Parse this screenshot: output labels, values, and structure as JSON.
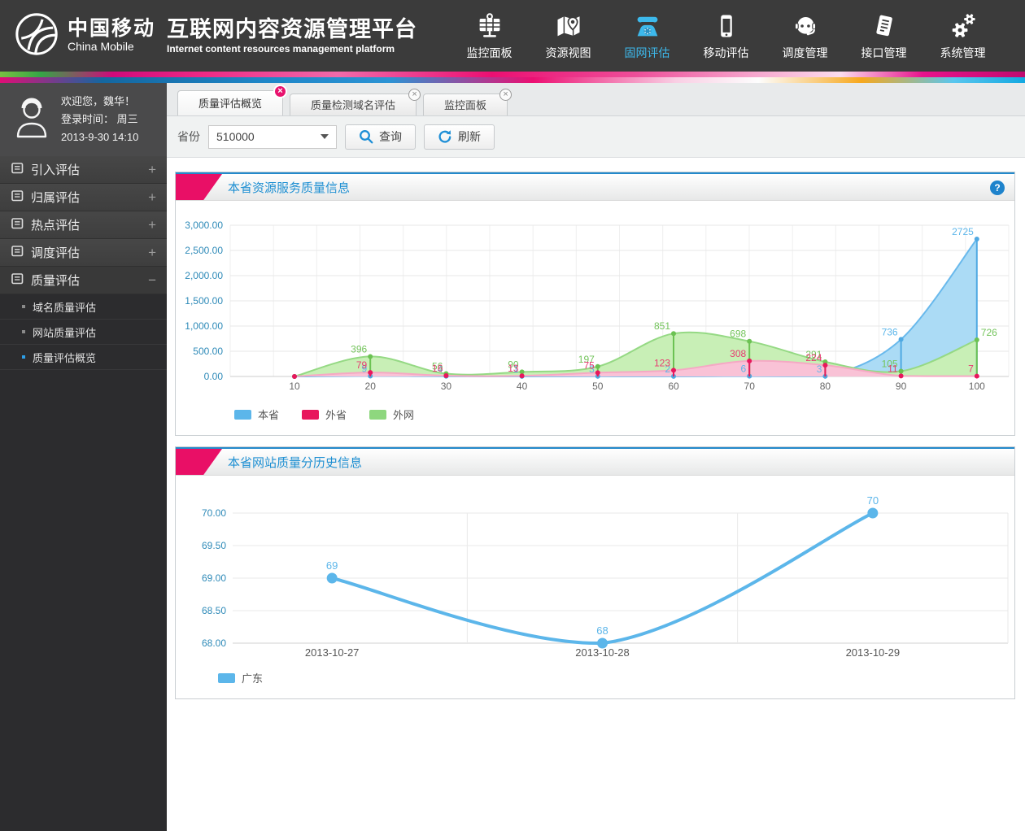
{
  "header": {
    "brand": {
      "name_cn": "中国移动",
      "name_en": "China Mobile",
      "platform_cn": "互联网内容资源管理平台",
      "platform_en": "Internet content resources management platform"
    },
    "nav": [
      {
        "label": "监控面板",
        "icon": "monitor-panel-icon",
        "active": false
      },
      {
        "label": "资源视图",
        "icon": "resource-view-icon",
        "active": false
      },
      {
        "label": "固网评估",
        "icon": "fixed-network-eval-icon",
        "active": true
      },
      {
        "label": "移动评估",
        "icon": "mobile-eval-icon",
        "active": false
      },
      {
        "label": "调度管理",
        "icon": "dispatch-manage-icon",
        "active": false
      },
      {
        "label": "接口管理",
        "icon": "interface-manage-icon",
        "active": false
      },
      {
        "label": "系统管理",
        "icon": "system-manage-icon",
        "active": false
      }
    ]
  },
  "sidebar": {
    "user": {
      "welcome": "欢迎您，魏华！",
      "login_line1": "登录时间：  周三",
      "login_line2": "2013-9-30   14:10"
    },
    "menu": [
      {
        "label": "引入评估",
        "state": "+"
      },
      {
        "label": "归属评估",
        "state": "+"
      },
      {
        "label": "热点评估",
        "state": "+"
      },
      {
        "label": "调度评估",
        "state": "+"
      },
      {
        "label": "质量评估",
        "state": "−"
      }
    ],
    "submenu": [
      {
        "label": "域名质量评估"
      },
      {
        "label": "网站质量评估"
      },
      {
        "label": "质量评估概览"
      }
    ]
  },
  "tabs": [
    {
      "label": "质量评估概览",
      "active": true
    },
    {
      "label": "质量检测域名评估",
      "active": false
    },
    {
      "label": "监控面板",
      "active": false
    }
  ],
  "filter": {
    "province_label": "省份",
    "province_value": "510000",
    "query_label": "查询",
    "refresh_label": "刷新"
  },
  "panels": [
    {
      "title": "本省资源服务质量信息",
      "help_glyph": "?"
    },
    {
      "title": "本省网站质量分历史信息"
    }
  ],
  "chart_data": [
    {
      "type": "area",
      "title": "本省资源服务质量信息",
      "x": [
        "10",
        "20",
        "30",
        "40",
        "50",
        "60",
        "70",
        "80",
        "90",
        "100"
      ],
      "yticks": [
        "0.00",
        "500.00",
        "1,000.00",
        "1,500.00",
        "2,000.00",
        "2,500.00",
        "3,000.00"
      ],
      "ymax": 3000,
      "ystep_value": 500,
      "grid": true,
      "legend_position": "bottom-left",
      "series": [
        {
          "name": "本省",
          "values": [
            0,
            9,
            4,
            1,
            3,
            2,
            6,
            3,
            736,
            2725
          ],
          "line": "#69b9ec",
          "fill": "#abdbf5",
          "dot": "#4fa9e2",
          "label": "#5db6ea"
        },
        {
          "name": "外网",
          "values": [
            0,
            396,
            56,
            90,
            197,
            851,
            698,
            291,
            105,
            726
          ],
          "line": "#95d984",
          "fill": "#c8efb6",
          "dot": "#6cc253",
          "label": "#74c45c",
          "last_label_right": true
        },
        {
          "name": "外省",
          "values": [
            0,
            79,
            16,
            13,
            75,
            123,
            308,
            224,
            11,
            7
          ],
          "line": "#f5a9c4",
          "fill": "#f9c2d6",
          "dot": "#e8175d",
          "label": "#e73b71"
        }
      ],
      "legend": [
        {
          "label": "本省",
          "color": "#5cb6ea"
        },
        {
          "label": "外省",
          "color": "#e8175d"
        },
        {
          "label": "外网",
          "color": "#8ed77e"
        }
      ]
    },
    {
      "type": "line",
      "title": "本省网站质量分历史信息",
      "categories": [
        "2013-10-27",
        "2013-10-28",
        "2013-10-29"
      ],
      "values": [
        69,
        68,
        70
      ],
      "yticks": [
        "68.00",
        "68.50",
        "69.00",
        "69.50",
        "70.00"
      ],
      "ylim": [
        68,
        70
      ],
      "grid": true,
      "legend_position": "bottom-left",
      "series_name": "广东",
      "color": "#5cb6ea",
      "legend": [
        {
          "label": "广东",
          "color": "#5cb6ea"
        }
      ]
    }
  ]
}
